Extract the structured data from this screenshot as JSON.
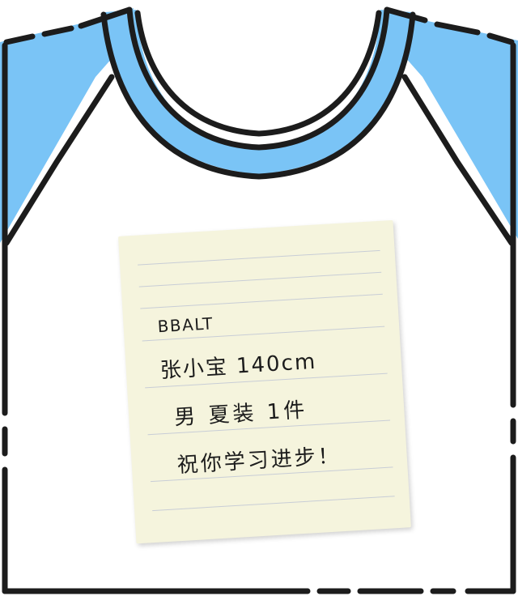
{
  "illustration": {
    "subject": "t-shirt",
    "colors": {
      "accent": "#7ac4f6",
      "outline": "#1c1c1c",
      "body": "#ffffff",
      "note_paper": "#f5f4dd",
      "note_lines": "#c8cdd6"
    }
  },
  "note": {
    "line1": "BBALT",
    "line2": "张小宝  140cm",
    "line3": "男 夏装  1件",
    "line4": "祝你学习进步！"
  }
}
